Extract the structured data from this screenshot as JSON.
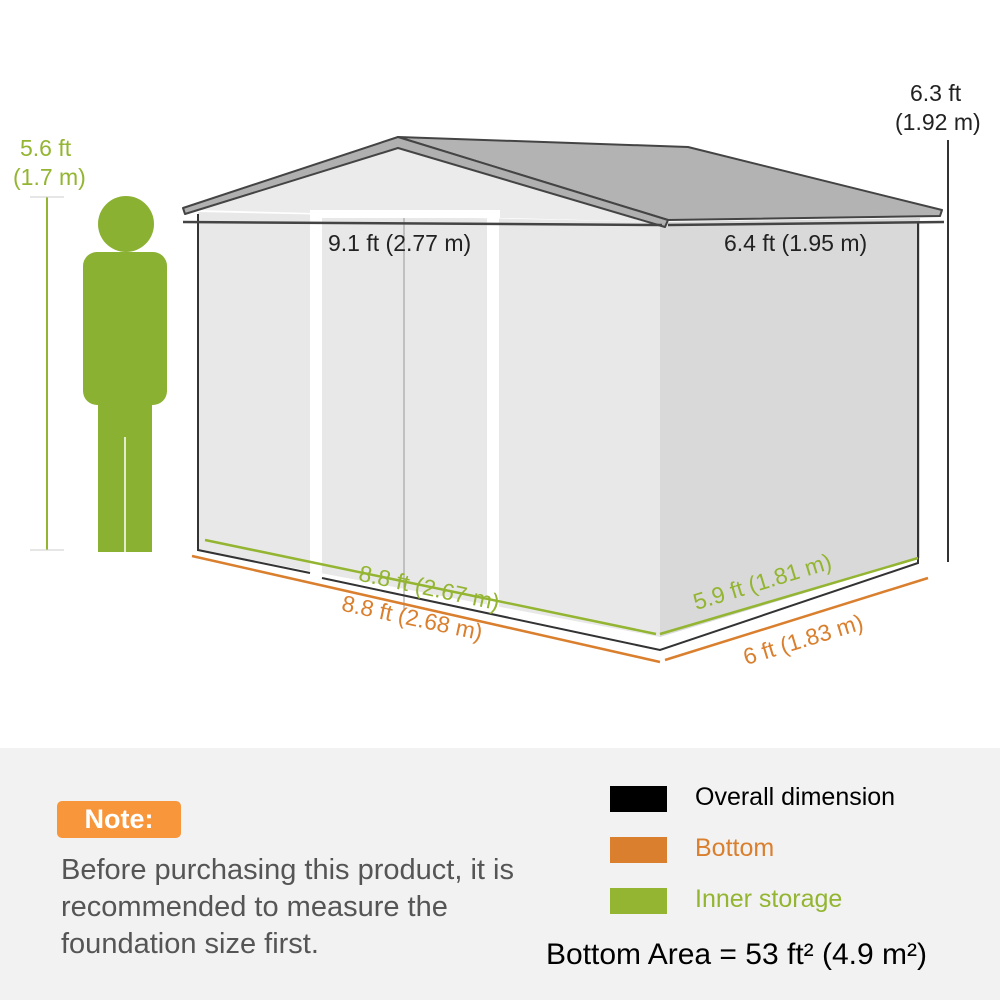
{
  "colors": {
    "overall": "#000000",
    "bottom": "#d97f2e",
    "inner": "#93b531",
    "note": "#f7963a",
    "person": "#8ab132"
  },
  "person": {
    "height_ft": "5.6 ft",
    "height_m": "(1.7 m)"
  },
  "dimensions": {
    "height_ft": "6.3 ft",
    "height_m": "(1.92 m)",
    "overall_width": "9.1 ft (2.77 m)",
    "overall_depth": "6.4 ft (1.95 m)",
    "inner_width": "8.8 ft (2.67 m)",
    "inner_depth": "5.9 ft (1.81 m)",
    "bottom_width": "8.8 ft (2.68 m)",
    "bottom_depth": "6 ft (1.83 m)"
  },
  "note": {
    "title": "Note:",
    "text": "Before purchasing this product, it is recommended to measure the foundation size first."
  },
  "legend": [
    {
      "label": "Overall dimension",
      "color": "#000000"
    },
    {
      "label": "Bottom",
      "color": "#d97f2e"
    },
    {
      "label": "Inner storage",
      "color": "#93b531"
    }
  ],
  "bottom_area": "Bottom Area = 53 ft² (4.9 m²)"
}
